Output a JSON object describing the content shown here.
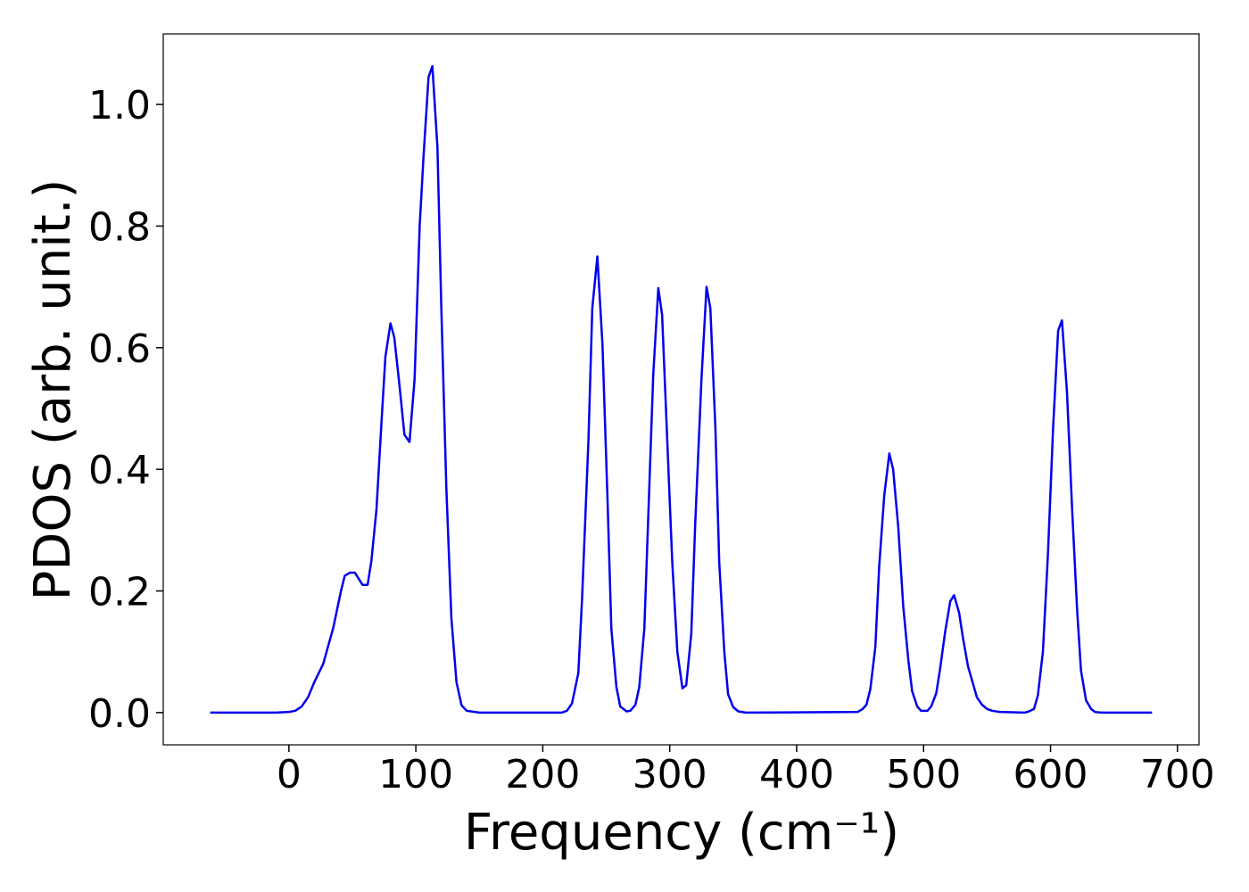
{
  "chart_data": {
    "type": "line",
    "xlabel": "Frequency (cm⁻¹)",
    "ylabel": "PDOS (arb. unit.)",
    "xlim": [
      -99,
      717
    ],
    "ylim": [
      -0.053,
      1.116
    ],
    "xticks": [
      0,
      100,
      200,
      300,
      400,
      500,
      600,
      700
    ],
    "yticks": [
      {
        "value": 0,
        "label": "0.0"
      },
      0.2,
      0.4,
      0.6,
      0.8,
      {
        "value": 1,
        "label": "1.0"
      }
    ],
    "series": [
      {
        "color": "#0000ee",
        "x": [
          -62,
          -10,
          0,
          5,
          10,
          15,
          20,
          27,
          35,
          41,
          44,
          48,
          52,
          58,
          62,
          65,
          69,
          73,
          76,
          80,
          83,
          87,
          91,
          95,
          99,
          103,
          106,
          110,
          113,
          117,
          120,
          124,
          128,
          132,
          136,
          140,
          150,
          215,
          219,
          223,
          228,
          231,
          236,
          239,
          243,
          247,
          251,
          254,
          258,
          261,
          266,
          269,
          273,
          276,
          280,
          287,
          291,
          294,
          298,
          302,
          306,
          310,
          313,
          317,
          320,
          325,
          329,
          332,
          336,
          339,
          343,
          346,
          350,
          354,
          360,
          448,
          452,
          455,
          458,
          462,
          465,
          469,
          473,
          476,
          480,
          484,
          488,
          491,
          495,
          498,
          503,
          506,
          510,
          513,
          517,
          521,
          524,
          528,
          531,
          535,
          539,
          542,
          546,
          550,
          554,
          560,
          580,
          583,
          587,
          590,
          594,
          598,
          602,
          606,
          609,
          613,
          617,
          621,
          624,
          628,
          632,
          635,
          640,
          680
        ],
        "values": [
          0,
          0,
          0.001,
          0.003,
          0.01,
          0.025,
          0.05,
          0.08,
          0.14,
          0.2,
          0.225,
          0.23,
          0.23,
          0.21,
          0.21,
          0.25,
          0.335,
          0.48,
          0.585,
          0.64,
          0.617,
          0.54,
          0.457,
          0.445,
          0.548,
          0.8,
          0.913,
          1.045,
          1.063,
          0.93,
          0.67,
          0.37,
          0.155,
          0.05,
          0.012,
          0.003,
          0,
          0,
          0.003,
          0.015,
          0.065,
          0.19,
          0.45,
          0.665,
          0.75,
          0.606,
          0.35,
          0.138,
          0.042,
          0.01,
          0.002,
          0.003,
          0.013,
          0.042,
          0.138,
          0.555,
          0.698,
          0.654,
          0.45,
          0.247,
          0.1,
          0.04,
          0.045,
          0.13,
          0.306,
          0.548,
          0.7,
          0.665,
          0.467,
          0.247,
          0.1,
          0.03,
          0.009,
          0.002,
          0,
          0.001,
          0.006,
          0.013,
          0.038,
          0.108,
          0.24,
          0.357,
          0.426,
          0.4,
          0.306,
          0.174,
          0.086,
          0.035,
          0.01,
          0.003,
          0.003,
          0.01,
          0.032,
          0.072,
          0.133,
          0.183,
          0.193,
          0.164,
          0.123,
          0.076,
          0.047,
          0.025,
          0.013,
          0.006,
          0.003,
          0.001,
          0,
          0.002,
          0.006,
          0.028,
          0.1,
          0.262,
          0.467,
          0.628,
          0.645,
          0.526,
          0.335,
          0.167,
          0.069,
          0.02,
          0.006,
          0.001,
          0,
          0
        ]
      }
    ]
  }
}
